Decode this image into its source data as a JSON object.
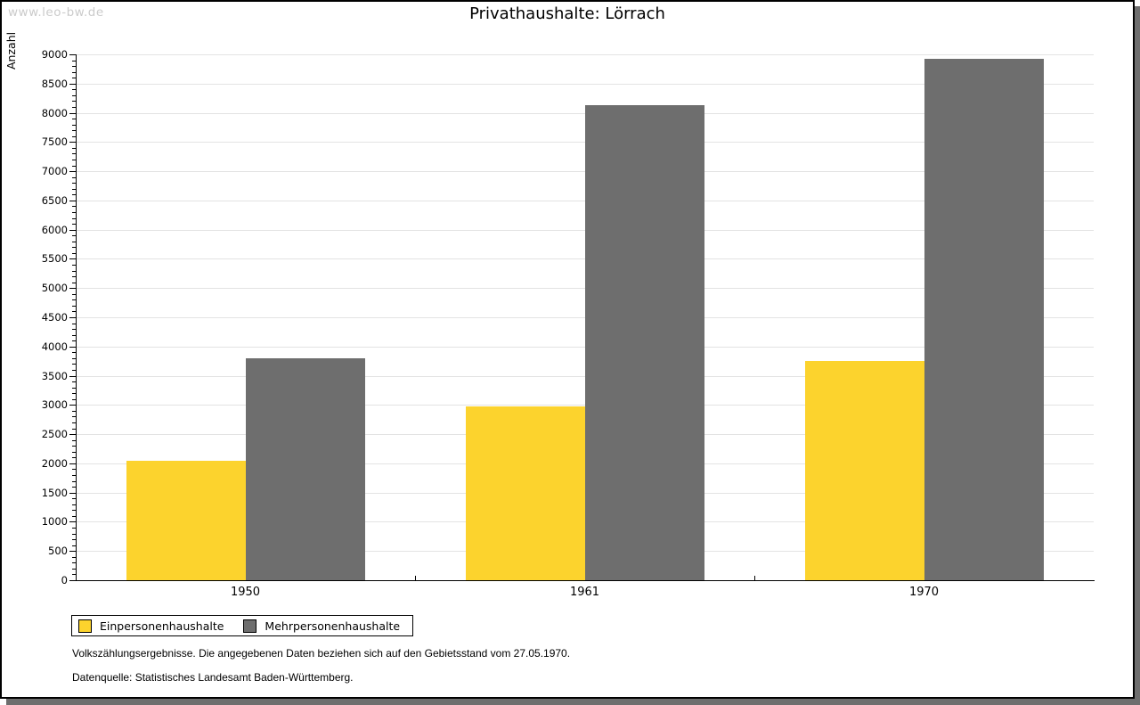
{
  "watermark": "www.leo-bw.de",
  "title": "Privathaushalte: Lörrach",
  "chart_data": {
    "type": "bar",
    "title": "Privathaushalte: Lörrach",
    "xlabel": "",
    "ylabel": "Anzahl",
    "categories": [
      "1950",
      "1961",
      "1970"
    ],
    "series": [
      {
        "name": "Einpersonenhaushalte",
        "color": "#FCD32D",
        "values": [
          2040,
          2980,
          3760
        ]
      },
      {
        "name": "Mehrpersonenhaushalte",
        "color": "#6E6E6E",
        "values": [
          3800,
          8130,
          8930
        ]
      }
    ],
    "ylim": [
      0,
      9000
    ],
    "y_major_step": 500,
    "y_minor_step": 100,
    "grid": true,
    "legend_position": "bottom-left"
  },
  "footnotes": {
    "line1": "Volkszählungsergebnisse. Die angegebenen Daten beziehen sich auf den Gebietsstand vom 27.05.1970.",
    "line2": "Datenquelle: Statistisches Landesamt Baden-Württemberg."
  },
  "colors": {
    "bar_einpersonen": "#FCD32D",
    "bar_mehrpersonen": "#6E6E6E",
    "gridline": "#E3E3E3",
    "axis": "#000000",
    "watermark": "#CBCBCB",
    "panel_shadow": "#6E6E6E",
    "background": "#FFFFFF"
  }
}
